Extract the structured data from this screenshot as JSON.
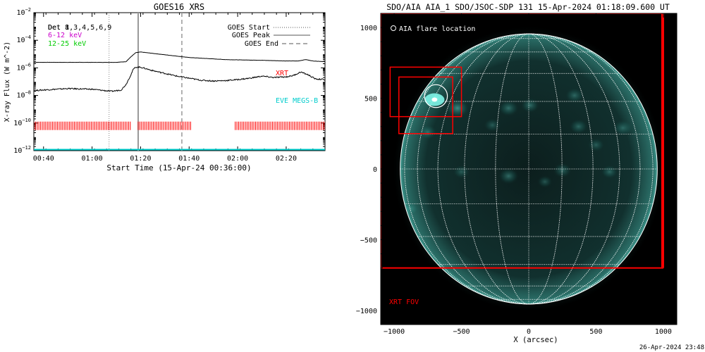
{
  "chart_data": [
    {
      "type": "line",
      "title": "GOES16 XRS",
      "xlabel": "Start Time (15-Apr-24 00:36:00)",
      "ylabel": "X-ray Flux (W m^-2)",
      "y_scale": "log",
      "ylim_exp": [
        -12,
        -2
      ],
      "xlim": [
        "00:36",
        "02:36"
      ],
      "x_ticks": [
        "00:40",
        "01:00",
        "01:20",
        "01:40",
        "02:00",
        "02:20"
      ],
      "y_ticks": [
        "10^-12",
        "10^-10",
        "10^-8",
        "10^-6",
        "10^-4",
        "10^-2"
      ],
      "legend_left": [
        {
          "text": "Det 1,3,4,5,6,9",
          "color": "#000000"
        },
        {
          "text": "Det 8",
          "color": "#000000"
        },
        {
          "text": "6-12 keV",
          "color": "#cc00cc"
        },
        {
          "text": "12-25 keV",
          "color": "#00cc00"
        }
      ],
      "legend_right": [
        {
          "text": "GOES Start",
          "style": "dotted"
        },
        {
          "text": "GOES Peak",
          "style": "solid"
        },
        {
          "text": "GOES End",
          "style": "dashed"
        }
      ],
      "event_lines": {
        "start": "01:07",
        "peak": "01:19",
        "end": "01:37"
      },
      "annotations": [
        {
          "text": "XRT",
          "color": "#ff0000"
        },
        {
          "text": "EVE MEGS-B",
          "color": "#00cccc"
        }
      ],
      "xrt_coverage": [
        [
          "00:36",
          "01:16"
        ],
        [
          "01:19",
          "01:41"
        ],
        [
          "01:59",
          "02:36"
        ]
      ],
      "xrt_level_exp": -10.2,
      "eve_level_exp": -12,
      "series": [
        {
          "name": "Det 1,3,4,5,6,9",
          "color": "#000000",
          "x": [
            "00:36",
            "00:45",
            "01:00",
            "01:10",
            "01:14",
            "01:16",
            "01:18",
            "01:20",
            "01:25",
            "01:30",
            "01:35",
            "01:40",
            "01:45",
            "01:50",
            "01:55",
            "02:00",
            "02:10",
            "02:20",
            "02:25",
            "02:28",
            "02:31",
            "02:36"
          ],
          "y_exp": [
            -5.6,
            -5.6,
            -5.6,
            -5.6,
            -5.55,
            -5.2,
            -4.9,
            -4.85,
            -4.95,
            -5.05,
            -5.15,
            -5.25,
            -5.3,
            -5.35,
            -5.4,
            -5.42,
            -5.45,
            -5.5,
            -5.5,
            -5.4,
            -5.5,
            -5.55
          ]
        },
        {
          "name": "Det 8",
          "color": "#000000",
          "x": [
            "00:36",
            "00:40",
            "00:50",
            "01:00",
            "01:08",
            "01:12",
            "01:14",
            "01:16",
            "01:17",
            "01:18",
            "01:20",
            "01:25",
            "01:30",
            "01:35",
            "01:40",
            "01:45",
            "01:50",
            "01:55",
            "02:00",
            "02:05",
            "02:10",
            "02:15",
            "02:20",
            "02:23",
            "02:26",
            "02:29",
            "02:32",
            "02:36"
          ],
          "y_exp": [
            -7.65,
            -7.6,
            -7.5,
            -7.55,
            -7.7,
            -7.6,
            -7.2,
            -6.5,
            -6.1,
            -5.95,
            -5.95,
            -6.2,
            -6.4,
            -6.6,
            -6.75,
            -6.9,
            -6.95,
            -6.92,
            -6.85,
            -6.75,
            -6.6,
            -6.7,
            -6.65,
            -6.55,
            -6.3,
            -6.5,
            -6.8,
            -6.85
          ]
        }
      ]
    },
    {
      "type": "heatmap",
      "title": "SDO/AIA AIA_1 SDO/JSOC-SDP 131 15-Apr-2024 01:18:09.600 UT",
      "xlabel": "X (arcsec)",
      "ylabel": "",
      "xlim": [
        -1100,
        1100
      ],
      "ylim": [
        -1100,
        1100
      ],
      "x_ticks": [
        "-1000",
        "-500",
        "0",
        "500",
        "1000"
      ],
      "y_ticks": [
        "1000",
        "500",
        "0",
        "-500",
        "-1000"
      ],
      "legend": "AIA flare location",
      "fov_label": "XRT FOV",
      "timestamp": "26-Apr-2024 23:48",
      "solar_radius_arcsec": 955,
      "flare_location": {
        "x": -700,
        "y": 490,
        "circle_radius": 85
      },
      "boxes_arcsec": [
        {
          "name": "outer",
          "x0": -1030,
          "y0": 370,
          "x1": -500,
          "y1": 720
        },
        {
          "name": "inner",
          "x0": -965,
          "y0": 250,
          "x1": -565,
          "y1": 650
        },
        {
          "name": "xrt-fov",
          "x0": -1100,
          "y0": -700,
          "x1": 995,
          "y1": 1100
        }
      ],
      "palette": {
        "disk": "#0e2322",
        "glow": "#4fd6c7",
        "grid": "#ffffff",
        "box": "#ff0000"
      },
      "active_regions": [
        {
          "x": -690,
          "y": 500,
          "r": 40,
          "strength": 1.0
        },
        {
          "x": -530,
          "y": 430,
          "r": 70,
          "strength": 0.55
        },
        {
          "x": -150,
          "y": 430,
          "r": 60,
          "strength": 0.4
        },
        {
          "x": 10,
          "y": 450,
          "r": 55,
          "strength": 0.4
        },
        {
          "x": 340,
          "y": 520,
          "r": 55,
          "strength": 0.35
        },
        {
          "x": -270,
          "y": 310,
          "r": 50,
          "strength": 0.3
        },
        {
          "x": 370,
          "y": 300,
          "r": 55,
          "strength": 0.35
        },
        {
          "x": -750,
          "y": 260,
          "r": 55,
          "strength": 0.35
        },
        {
          "x": 700,
          "y": 290,
          "r": 60,
          "strength": 0.35
        },
        {
          "x": -500,
          "y": -20,
          "r": 50,
          "strength": 0.3
        },
        {
          "x": -150,
          "y": -50,
          "r": 60,
          "strength": 0.4
        },
        {
          "x": 250,
          "y": -10,
          "r": 55,
          "strength": 0.35
        },
        {
          "x": 600,
          "y": -20,
          "r": 50,
          "strength": 0.35
        },
        {
          "x": -880,
          "y": -280,
          "r": 50,
          "strength": 0.3
        },
        {
          "x": 120,
          "y": -90,
          "r": 45,
          "strength": 0.3
        },
        {
          "x": 500,
          "y": 170,
          "r": 50,
          "strength": 0.3
        }
      ]
    }
  ]
}
